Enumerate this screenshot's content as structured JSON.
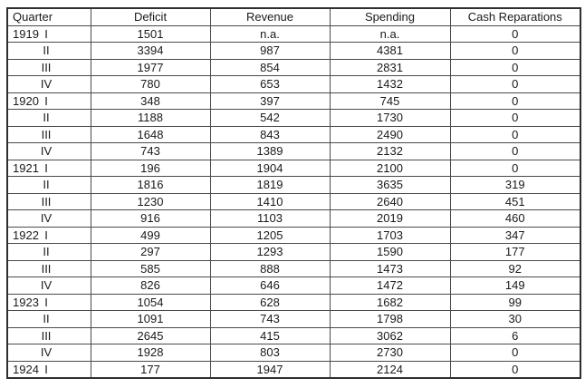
{
  "colors": {
    "background": "#ffffff",
    "text": "#1a1a1a",
    "border_outer": "#2f2f2f",
    "border_inner": "#4a4a4a"
  },
  "table": {
    "columns": [
      "Quarter",
      "Deficit",
      "Revenue",
      "Spending",
      "Cash Reparations"
    ],
    "rows": [
      {
        "year": "1919",
        "quarter": "I",
        "deficit": "1501",
        "revenue": "n.a.",
        "spending": "n.a.",
        "cash_reparations": "0"
      },
      {
        "year": "",
        "quarter": "II",
        "deficit": "3394",
        "revenue": "987",
        "spending": "4381",
        "cash_reparations": "0"
      },
      {
        "year": "",
        "quarter": "III",
        "deficit": "1977",
        "revenue": "854",
        "spending": "2831",
        "cash_reparations": "0"
      },
      {
        "year": "",
        "quarter": "IV",
        "deficit": "780",
        "revenue": "653",
        "spending": "1432",
        "cash_reparations": "0"
      },
      {
        "year": "1920",
        "quarter": "I",
        "deficit": "348",
        "revenue": "397",
        "spending": "745",
        "cash_reparations": "0"
      },
      {
        "year": "",
        "quarter": "II",
        "deficit": "1188",
        "revenue": "542",
        "spending": "1730",
        "cash_reparations": "0"
      },
      {
        "year": "",
        "quarter": "III",
        "deficit": "1648",
        "revenue": "843",
        "spending": "2490",
        "cash_reparations": "0"
      },
      {
        "year": "",
        "quarter": "IV",
        "deficit": "743",
        "revenue": "1389",
        "spending": "2132",
        "cash_reparations": "0"
      },
      {
        "year": "1921",
        "quarter": "I",
        "deficit": "196",
        "revenue": "1904",
        "spending": "2100",
        "cash_reparations": "0"
      },
      {
        "year": "",
        "quarter": "II",
        "deficit": "1816",
        "revenue": "1819",
        "spending": "3635",
        "cash_reparations": "319"
      },
      {
        "year": "",
        "quarter": "III",
        "deficit": "1230",
        "revenue": "1410",
        "spending": "2640",
        "cash_reparations": "451"
      },
      {
        "year": "",
        "quarter": "IV",
        "deficit": "916",
        "revenue": "1103",
        "spending": "2019",
        "cash_reparations": "460"
      },
      {
        "year": "1922",
        "quarter": "I",
        "deficit": "499",
        "revenue": "1205",
        "spending": "1703",
        "cash_reparations": "347"
      },
      {
        "year": "",
        "quarter": "II",
        "deficit": "297",
        "revenue": "1293",
        "spending": "1590",
        "cash_reparations": "177"
      },
      {
        "year": "",
        "quarter": "III",
        "deficit": "585",
        "revenue": "888",
        "spending": "1473",
        "cash_reparations": "92"
      },
      {
        "year": "",
        "quarter": "IV",
        "deficit": "826",
        "revenue": "646",
        "spending": "1472",
        "cash_reparations": "149"
      },
      {
        "year": "1923",
        "quarter": "I",
        "deficit": "1054",
        "revenue": "628",
        "spending": "1682",
        "cash_reparations": "99"
      },
      {
        "year": "",
        "quarter": "II",
        "deficit": "1091",
        "revenue": "743",
        "spending": "1798",
        "cash_reparations": "30"
      },
      {
        "year": "",
        "quarter": "III",
        "deficit": "2645",
        "revenue": "415",
        "spending": "3062",
        "cash_reparations": "6"
      },
      {
        "year": "",
        "quarter": "IV",
        "deficit": "1928",
        "revenue": "803",
        "spending": "2730",
        "cash_reparations": "0"
      },
      {
        "year": "1924",
        "quarter": "I",
        "deficit": "177",
        "revenue": "1947",
        "spending": "2124",
        "cash_reparations": "0"
      }
    ]
  },
  "chart_data": {
    "type": "table",
    "title": "",
    "columns": [
      "Quarter",
      "Deficit",
      "Revenue",
      "Spending",
      "Cash Reparations"
    ],
    "rows": [
      [
        "1919 I",
        1501,
        "n.a.",
        "n.a.",
        0
      ],
      [
        "1919 II",
        3394,
        987,
        4381,
        0
      ],
      [
        "1919 III",
        1977,
        854,
        2831,
        0
      ],
      [
        "1919 IV",
        780,
        653,
        1432,
        0
      ],
      [
        "1920 I",
        348,
        397,
        745,
        0
      ],
      [
        "1920 II",
        1188,
        542,
        1730,
        0
      ],
      [
        "1920 III",
        1648,
        843,
        2490,
        0
      ],
      [
        "1920 IV",
        743,
        1389,
        2132,
        0
      ],
      [
        "1921 I",
        196,
        1904,
        2100,
        0
      ],
      [
        "1921 II",
        1816,
        1819,
        3635,
        319
      ],
      [
        "1921 III",
        1230,
        1410,
        2640,
        451
      ],
      [
        "1921 IV",
        916,
        1103,
        2019,
        460
      ],
      [
        "1922 I",
        499,
        1205,
        1703,
        347
      ],
      [
        "1922 II",
        297,
        1293,
        1590,
        177
      ],
      [
        "1922 III",
        585,
        888,
        1473,
        92
      ],
      [
        "1922 IV",
        826,
        646,
        1472,
        149
      ],
      [
        "1923 I",
        1054,
        628,
        1682,
        99
      ],
      [
        "1923 II",
        1091,
        743,
        1798,
        30
      ],
      [
        "1923 III",
        2645,
        415,
        3062,
        6
      ],
      [
        "1923 IV",
        1928,
        803,
        2730,
        0
      ],
      [
        "1924 I",
        177,
        1947,
        2124,
        0
      ]
    ]
  }
}
